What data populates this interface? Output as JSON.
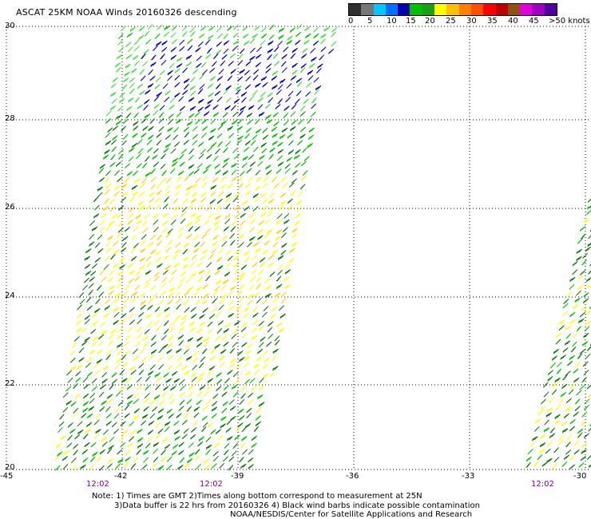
{
  "title": "ASCAT 25KM NOAA Winds 20160326 descending",
  "legend": {
    "colors": [
      "#303030",
      "#777777",
      "#00c8ff",
      "#0070ff",
      "#0000b0",
      "#00c000",
      "#18a018",
      "#ffff00",
      "#ffc000",
      "#ff8000",
      "#ff5000",
      "#ff0000",
      "#c00000",
      "#905010",
      "#e000e0",
      "#a000c0",
      "#5000a0"
    ],
    "labels": [
      "0",
      "5",
      "10",
      "15",
      "20",
      "25",
      "30",
      "35",
      "40",
      "45",
      ">50 knots"
    ]
  },
  "latitude_labels": [
    "30",
    "28",
    "26",
    "24",
    "22",
    "20"
  ],
  "longitude_labels": [
    "-45",
    "-42",
    "-39",
    "-36",
    "-33",
    "-30"
  ],
  "time_labels": [
    "12:02",
    "12:02",
    "12:02"
  ],
  "notes": [
    "Note: 1) Times are GMT 2)Times along bottom correspond to measurement at 25N",
    "3)Data buffer is 22 hrs from 20160326 4) Black wind barbs indicate possible contamination",
    "NOAA/NESDIS/Center for Satellite Applications and Research"
  ],
  "wind_colors": {
    "calm_green": "#00c000",
    "dark_green": "#0a7a0a",
    "light_green": "#40e040",
    "blue": "#0000c8",
    "yellow": "#ffff00",
    "orange_yellow": "#ffd000"
  }
}
